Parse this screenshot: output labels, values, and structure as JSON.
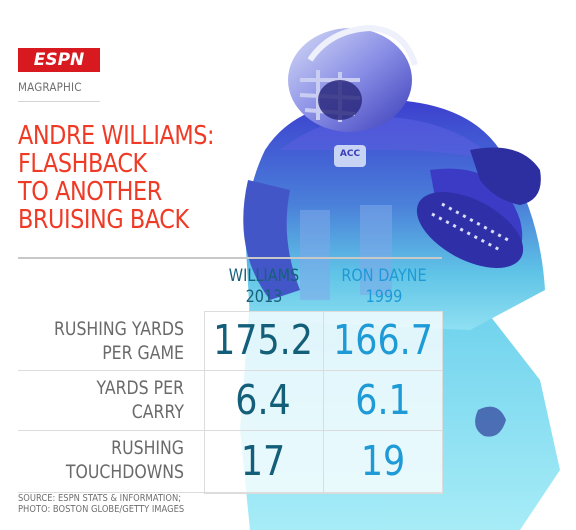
{
  "brand": {
    "logo": "ESPN",
    "section": "MAGRAPHIC"
  },
  "headline": {
    "line1": "ANDRE WILLIAMS:",
    "line2": "FLASHBACK",
    "line3": "TO ANOTHER",
    "line4": "BRUISING BACK"
  },
  "table": {
    "columns": [
      {
        "name": "WILLIAMS",
        "year": "2013"
      },
      {
        "name": "RON DAYNE",
        "year": "1999"
      }
    ],
    "rows": [
      {
        "label_line1": "RUSHING YARDS",
        "label_line2": "PER GAME",
        "williams": "175.2",
        "dayne": "166.7"
      },
      {
        "label_line1": "YARDS PER",
        "label_line2": "CARRY",
        "williams": "6.4",
        "dayne": "6.1"
      },
      {
        "label_line1": "RUSHING",
        "label_line2": "TOUCHDOWNS",
        "williams": "17",
        "dayne": "19"
      }
    ]
  },
  "jersey_patch": "ACC",
  "credits": {
    "line1": "SOURCE: ESPN STATS & INFORMATION;",
    "line2": "PHOTO: BOSTON GLOBE/GETTY IMAGES"
  },
  "colors": {
    "headline": "#ef3a26",
    "williams": "#135e78",
    "dayne": "#1e9ad6",
    "logo_bg": "#d8191f"
  }
}
